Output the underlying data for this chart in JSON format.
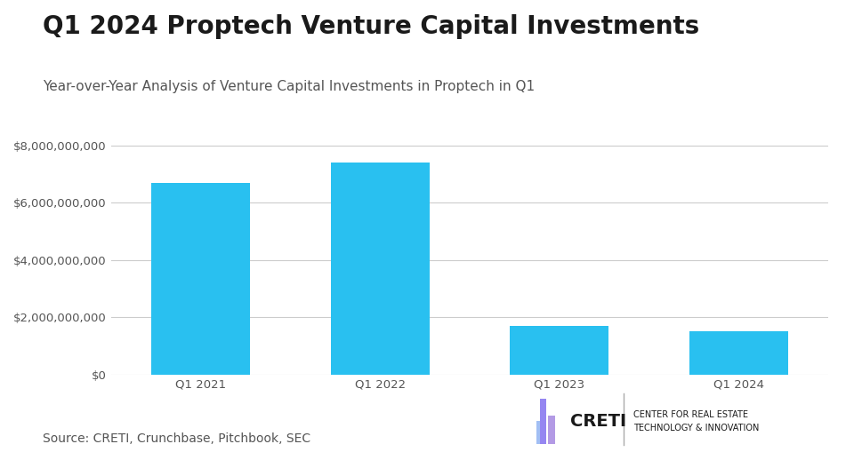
{
  "title": "Q1 2024 Proptech Venture Capital Investments",
  "subtitle": "Year-over-Year Analysis of Venture Capital Investments in Proptech in Q1",
  "categories": [
    "Q1 2021",
    "Q1 2022",
    "Q1 2023",
    "Q1 2024"
  ],
  "values": [
    6700000000,
    7400000000,
    1700000000,
    1500000000
  ],
  "bar_color": "#29C0F0",
  "background_color": "#ffffff",
  "ylim": [
    0,
    8500000000
  ],
  "yticks": [
    0,
    2000000000,
    4000000000,
    6000000000,
    8000000000
  ],
  "source_text": "Source: CRETI, Crunchbase, Pitchbook, SEC",
  "title_fontsize": 20,
  "subtitle_fontsize": 11,
  "tick_fontsize": 9.5,
  "source_fontsize": 10,
  "grid_color": "#cccccc",
  "text_color": "#1a1a1a",
  "axis_label_color": "#555555",
  "creti_text": "CRETI",
  "creti_sub": "CENTER FOR REAL ESTATE\nTECHNOLOGY & INNOVATION",
  "creti_fontsize": 14,
  "creti_sub_fontsize": 7
}
